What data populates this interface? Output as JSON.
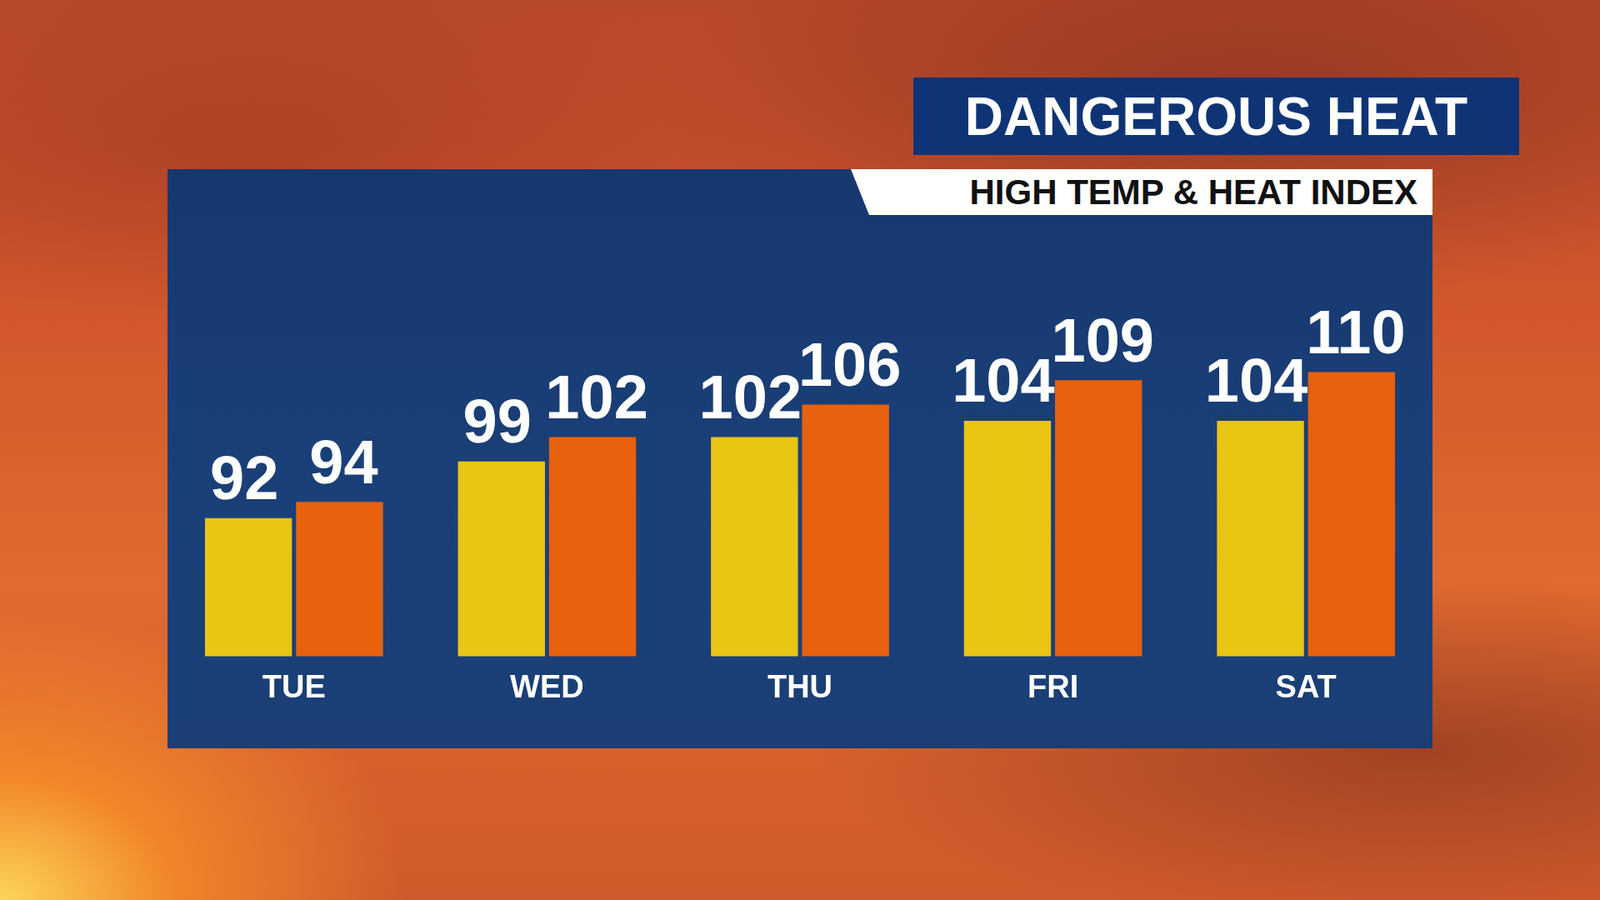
{
  "chart_data": {
    "type": "bar",
    "title": "DANGEROUS HEAT",
    "subtitle": "HIGH TEMP & HEAT INDEX",
    "categories": [
      "TUE",
      "WED",
      "THU",
      "FRI",
      "SAT"
    ],
    "series": [
      {
        "color": "#e9c514",
        "values": [
          92,
          99,
          102,
          104,
          104
        ]
      },
      {
        "color": "#e8610e",
        "values": [
          94,
          102,
          106,
          109,
          110
        ]
      }
    ],
    "ylim": [
      75,
      135
    ],
    "grid": false,
    "data_labels": true,
    "tick_labels": "x"
  }
}
